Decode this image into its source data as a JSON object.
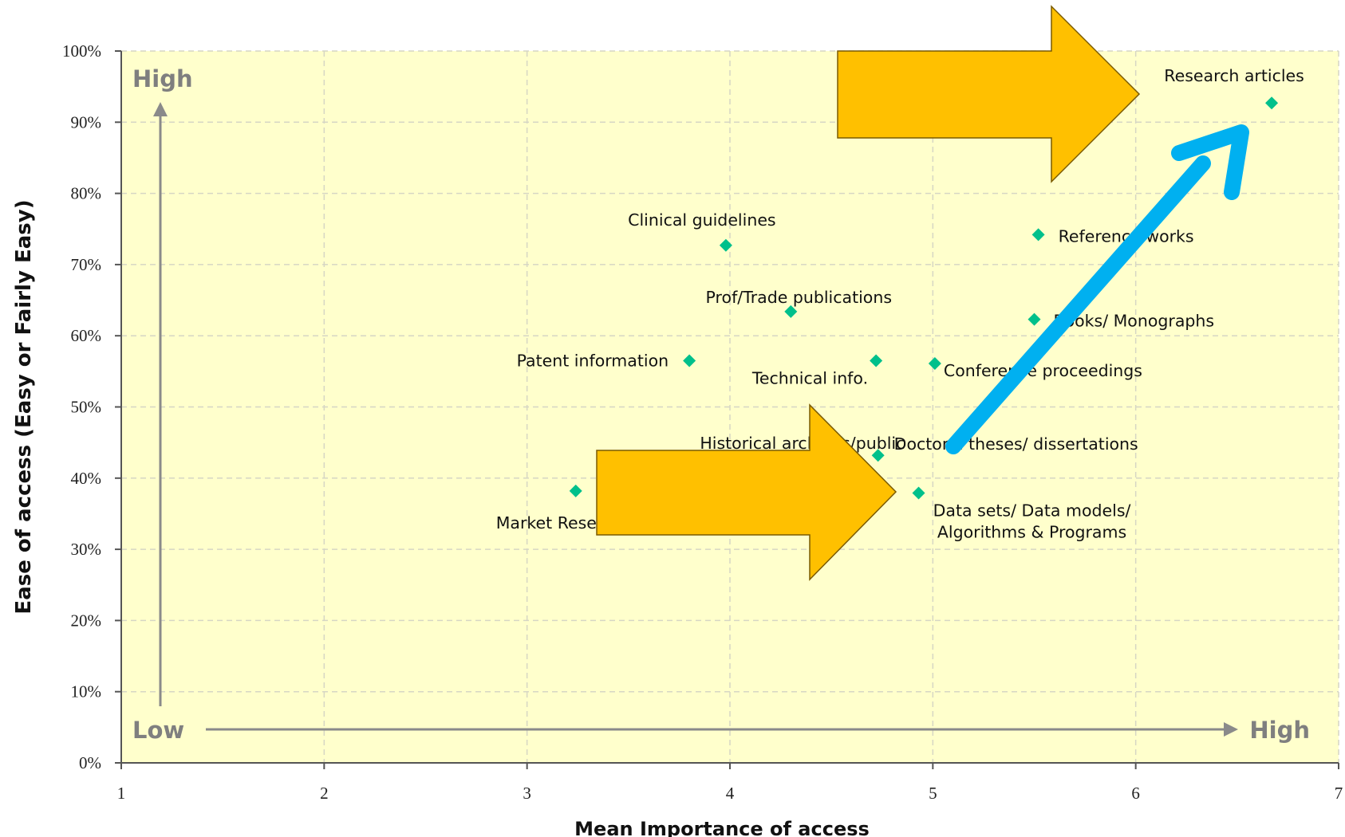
{
  "chart_data": {
    "type": "scatter",
    "title": "",
    "xlabel": "Mean Importance of access",
    "ylabel": "Ease of access (Easy or Fairly Easy)",
    "xlim": [
      1,
      7
    ],
    "ylim": [
      0,
      100
    ],
    "x_ticks": [
      "1",
      "2",
      "3",
      "4",
      "5",
      "6",
      "7"
    ],
    "y_ticks": [
      "0%",
      "10%",
      "20%",
      "30%",
      "40%",
      "50%",
      "60%",
      "70%",
      "80%",
      "90%",
      "100%"
    ],
    "grid": true,
    "background_color": "#ffffcc",
    "marker_color": "#00c08b",
    "points": [
      {
        "label": "Research articles",
        "x": 6.67,
        "y": 92.7
      },
      {
        "label": "Reference works",
        "x": 5.52,
        "y": 74.2
      },
      {
        "label": "Clinical guidelines",
        "x": 3.98,
        "y": 72.7
      },
      {
        "label": "Prof/Trade publications",
        "x": 4.3,
        "y": 63.4
      },
      {
        "label": "Books/ Monographs",
        "x": 5.5,
        "y": 62.3
      },
      {
        "label": "Patent information",
        "x": 3.8,
        "y": 56.5
      },
      {
        "label": "Technical info.",
        "x": 4.72,
        "y": 56.5
      },
      {
        "label": "Conference proceedings",
        "x": 5.01,
        "y": 56.1
      },
      {
        "label": "Historical archives/public",
        "x": 4.55,
        "y": 45.0
      },
      {
        "label": "Doctoral theses/ dissertations",
        "x": 4.73,
        "y": 43.2
      },
      {
        "label": "Market Research",
        "x": 3.24,
        "y": 38.2
      },
      {
        "label": "Data sets/ Data models/ Algorithms & Programs",
        "x": 4.93,
        "y": 37.9
      }
    ],
    "annotations": {
      "y_high": "High",
      "y_low": "Low",
      "x_high": "High",
      "overlays": [
        "orange-arrow-top",
        "orange-arrow-bottom",
        "blue-arrow"
      ],
      "overlay_colors": {
        "orange": "#ffc000",
        "blue": "#00b0f0"
      }
    }
  }
}
